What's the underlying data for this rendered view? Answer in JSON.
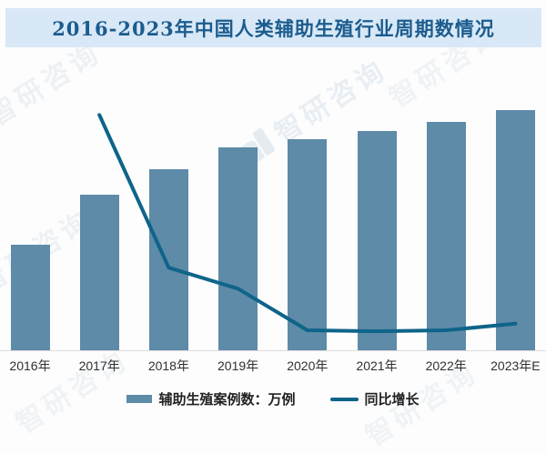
{
  "title": "2016-2023年中国人类辅助生殖行业周期数情况",
  "watermark": {
    "text": "智研咨询"
  },
  "colors": {
    "bar": "#5d8ba8",
    "line": "#0e6489",
    "title_text": "#1b5c8e",
    "title_band_bg": "#d8e8f6",
    "axis_line": "#dcdcdc",
    "axis_label_text": "#303030",
    "watermark": "#87a9c4"
  },
  "chart_data": {
    "type": "combo_bar_line",
    "title": "2016-2023年中国人类辅助生殖行业周期数情况",
    "categories": [
      "2016年",
      "2017年",
      "2018年",
      "2019年",
      "2020年",
      "2021年",
      "2022年",
      "2023年E"
    ],
    "series": [
      {
        "name": "辅助生殖案例数：万例",
        "type": "bar",
        "color": "#5d8ba8",
        "values": [
          53,
          77.9,
          90.8,
          102,
          106,
          110.1,
          114.5,
          120.5
        ]
      },
      {
        "name": "同比增长",
        "type": "line",
        "color": "#0e6489",
        "unit": "%",
        "values": [
          null,
          47,
          16.5,
          12.3,
          4.0,
          3.8,
          4.0,
          5.3
        ]
      }
    ],
    "value_labels_shown": false,
    "y_axes_hidden": true,
    "gridlines": false,
    "ylim_bar": [
      0,
      137
    ],
    "ylim_line_pct": [
      0,
      54.5
    ],
    "legend_position": "bottom",
    "xlabel": "",
    "ylabel": ""
  }
}
